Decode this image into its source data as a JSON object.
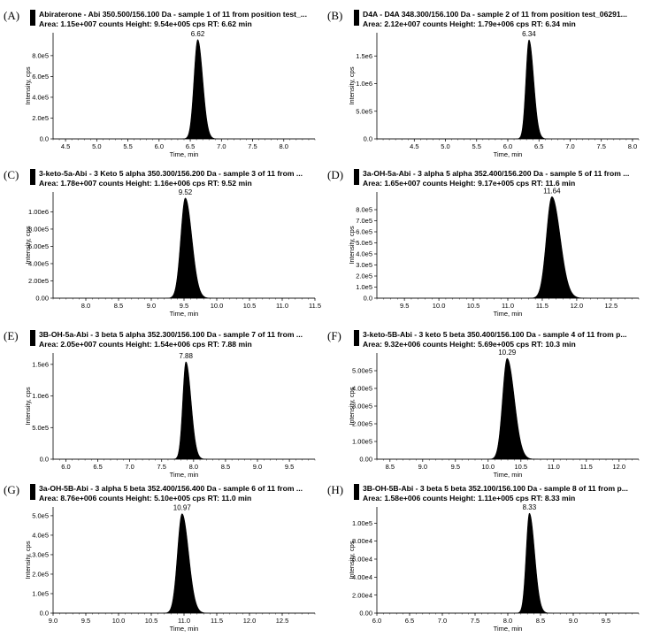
{
  "chart_data": [
    {
      "panel": "(A)",
      "type": "area",
      "title": "Abiraterone - Abi 350.500/156.100 Da - sample 1 of 11 from position test_...",
      "subtitle": "Area: 1.15e+007 counts  Height: 9.54e+005 cps  RT: 6.62 min",
      "xlabel": "Time, min",
      "ylabel": "Intensity, cps",
      "xlim": [
        4.3,
        8.5
      ],
      "ylim": [
        0,
        1020000
      ],
      "x_ticks": [
        "4.5",
        "5.0",
        "5.5",
        "6.0",
        "6.5",
        "7.0",
        "7.5",
        "8.0"
      ],
      "y_ticks": [
        {
          "value": 0,
          "label": "0.0"
        },
        {
          "value": 200000,
          "label": "2.0e5"
        },
        {
          "value": 400000,
          "label": "4.0e5"
        },
        {
          "value": 600000,
          "label": "6.0e5"
        },
        {
          "value": 800000,
          "label": "8.0e5"
        }
      ],
      "peak": {
        "rt": 6.62,
        "height": 954000,
        "label": "6.62",
        "sigma_left": 0.06,
        "sigma_right": 0.08
      }
    },
    {
      "panel": "(B)",
      "type": "area",
      "title": "D4A - D4A 348.300/156.100 Da - sample 2 of 11 from position test_06291...",
      "subtitle": "Area: 2.12e+007 counts  Height: 1.79e+006 cps  RT: 6.34 min",
      "xlabel": "Time, min",
      "ylabel": "Intensity, cps",
      "xlim": [
        3.9,
        8.1
      ],
      "ylim": [
        0,
        1920000
      ],
      "x_ticks": [
        "4.5",
        "5.0",
        "5.5",
        "6.0",
        "6.5",
        "7.0",
        "7.5",
        "8.0"
      ],
      "y_ticks": [
        {
          "value": 0,
          "label": "0.0"
        },
        {
          "value": 500000,
          "label": "5.0e5"
        },
        {
          "value": 1000000,
          "label": "1.0e6"
        },
        {
          "value": 1500000,
          "label": "1.5e6"
        }
      ],
      "peak": {
        "rt": 6.34,
        "height": 1790000,
        "label": "6.34",
        "sigma_left": 0.05,
        "sigma_right": 0.075
      }
    },
    {
      "panel": "(C)",
      "type": "area",
      "title": "3-keto-5a-Abi - 3 Keto 5 alpha 350.300/156.200 Da - sample 3 of 11 from ...",
      "subtitle": "Area: 1.78e+007 counts  Height: 1.16e+006 cps  RT: 9.52 min",
      "xlabel": "Time, min",
      "ylabel": "Intensity, cps",
      "xlim": [
        7.5,
        11.5
      ],
      "ylim": [
        0,
        1230000
      ],
      "x_ticks": [
        "8.0",
        "8.5",
        "9.0",
        "9.5",
        "10.0",
        "10.5",
        "11.0",
        "11.5"
      ],
      "y_ticks": [
        {
          "value": 0,
          "label": "0.00"
        },
        {
          "value": 200000,
          "label": "2.00e5"
        },
        {
          "value": 400000,
          "label": "4.00e5"
        },
        {
          "value": 600000,
          "label": "6.00e5"
        },
        {
          "value": 800000,
          "label": "8.00e5"
        },
        {
          "value": 1000000,
          "label": "1.00e6"
        }
      ],
      "peak": {
        "rt": 9.52,
        "height": 1160000,
        "label": "9.52",
        "sigma_left": 0.07,
        "sigma_right": 0.1
      }
    },
    {
      "panel": "(D)",
      "type": "area",
      "title": "3a-OH-5a-Abi - 3 alpha 5 alpha 352.400/156.200 Da - sample 5 of 11 from ...",
      "subtitle": "Area: 1.65e+007 counts  Height: 9.17e+005 cps  RT: 11.6 min",
      "xlabel": "Time, min",
      "ylabel": "Intensity, cps",
      "xlim": [
        9.1,
        12.9
      ],
      "ylim": [
        0,
        960000
      ],
      "x_ticks": [
        "9.5",
        "10.0",
        "10.5",
        "11.0",
        "11.5",
        "12.0",
        "12.5"
      ],
      "y_ticks": [
        {
          "value": 0,
          "label": "0.0"
        },
        {
          "value": 100000,
          "label": "1.0e5"
        },
        {
          "value": 200000,
          "label": "2.0e5"
        },
        {
          "value": 300000,
          "label": "3.0e5"
        },
        {
          "value": 400000,
          "label": "4.0e5"
        },
        {
          "value": 500000,
          "label": "5.0e5"
        },
        {
          "value": 600000,
          "label": "6.0e5"
        },
        {
          "value": 700000,
          "label": "7.0e5"
        },
        {
          "value": 800000,
          "label": "8.0e5"
        }
      ],
      "peak": {
        "rt": 11.64,
        "height": 917000,
        "label": "11.64",
        "sigma_left": 0.08,
        "sigma_right": 0.12
      }
    },
    {
      "panel": "(E)",
      "type": "area",
      "title": "3B-OH-5a-Abi - 3 beta 5 alpha 352.300/156.100 Da - sample 7 of 11 from ...",
      "subtitle": "Area: 2.05e+007 counts  Height: 1.54e+006 cps  RT: 7.88 min",
      "xlabel": "Time, min",
      "ylabel": "Intensity, cps",
      "xlim": [
        5.8,
        9.9
      ],
      "ylim": [
        0,
        1680000
      ],
      "x_ticks": [
        "6.0",
        "6.5",
        "7.0",
        "7.5",
        "8.0",
        "8.5",
        "9.0",
        "9.5"
      ],
      "y_ticks": [
        {
          "value": 0,
          "label": "0.0"
        },
        {
          "value": 500000,
          "label": "5.0e5"
        },
        {
          "value": 1000000,
          "label": "1.0e6"
        },
        {
          "value": 1500000,
          "label": "1.5e6"
        }
      ],
      "peak": {
        "rt": 7.88,
        "height": 1540000,
        "label": "7.88",
        "sigma_left": 0.05,
        "sigma_right": 0.08
      }
    },
    {
      "panel": "(F)",
      "type": "area",
      "title": "3-keto-5B-Abi - 3 keto 5 beta 350.400/156.100 Da - sample 4 of 11 from p...",
      "subtitle": "Area: 9.32e+006 counts  Height: 5.69e+005 cps  RT: 10.3 min",
      "xlabel": "Time, min",
      "ylabel": "Intensity, cps",
      "xlim": [
        8.3,
        12.3
      ],
      "ylim": [
        0,
        600000
      ],
      "x_ticks": [
        "8.5",
        "9.0",
        "9.5",
        "10.0",
        "10.5",
        "11.0",
        "11.5",
        "12.0"
      ],
      "y_ticks": [
        {
          "value": 0,
          "label": "0.00"
        },
        {
          "value": 100000,
          "label": "1.00e5"
        },
        {
          "value": 200000,
          "label": "2.00e5"
        },
        {
          "value": 300000,
          "label": "3.00e5"
        },
        {
          "value": 400000,
          "label": "4.00e5"
        },
        {
          "value": 500000,
          "label": "5.00e5"
        }
      ],
      "peak": {
        "rt": 10.29,
        "height": 569000,
        "label": "10.29",
        "sigma_left": 0.07,
        "sigma_right": 0.11
      }
    },
    {
      "panel": "(G)",
      "type": "area",
      "title": "3a-OH-5B-Abi - 3 alpha 5 beta 352.400/156.400 Da - sample 6 of 11 from ...",
      "subtitle": "Area: 8.76e+006 counts  Height: 5.10e+005 cps  RT: 11.0 min",
      "xlabel": "Time, min",
      "ylabel": "Intensity, cps",
      "xlim": [
        9.0,
        13.0
      ],
      "ylim": [
        0,
        545000
      ],
      "x_ticks": [
        "9.0",
        "9.5",
        "10.0",
        "10.5",
        "11.0",
        "11.5",
        "12.0",
        "12.5"
      ],
      "y_ticks": [
        {
          "value": 0,
          "label": "0.0"
        },
        {
          "value": 100000,
          "label": "1.0e5"
        },
        {
          "value": 200000,
          "label": "2.0e5"
        },
        {
          "value": 300000,
          "label": "3.0e5"
        },
        {
          "value": 400000,
          "label": "4.0e5"
        },
        {
          "value": 500000,
          "label": "5.0e5"
        }
      ],
      "peak": {
        "rt": 10.97,
        "height": 510000,
        "label": "10.97",
        "sigma_left": 0.07,
        "sigma_right": 0.1
      }
    },
    {
      "panel": "(H)",
      "type": "area",
      "title": "3B-OH-5B-Abi - 3 beta 5 beta 352.100/156.100 Da - sample 8 of 11 from p...",
      "subtitle": "Area: 1.58e+006 counts  Height: 1.11e+005 cps  RT: 8.33 min",
      "xlabel": "Time, min",
      "ylabel": "Intensity, cps",
      "xlim": [
        6.0,
        10.0
      ],
      "ylim": [
        0,
        118000
      ],
      "x_ticks": [
        "6.0",
        "6.5",
        "7.0",
        "7.5",
        "8.0",
        "8.5",
        "9.0",
        "9.5"
      ],
      "y_ticks": [
        {
          "value": 0,
          "label": "0.00"
        },
        {
          "value": 20000,
          "label": "2.00e4"
        },
        {
          "value": 40000,
          "label": "4.00e4"
        },
        {
          "value": 60000,
          "label": "6.00e4"
        },
        {
          "value": 80000,
          "label": "8.00e4"
        },
        {
          "value": 100000,
          "label": "1.00e5"
        }
      ],
      "peak": {
        "rt": 8.33,
        "height": 111000,
        "label": "8.33",
        "sigma_left": 0.05,
        "sigma_right": 0.08
      }
    }
  ]
}
